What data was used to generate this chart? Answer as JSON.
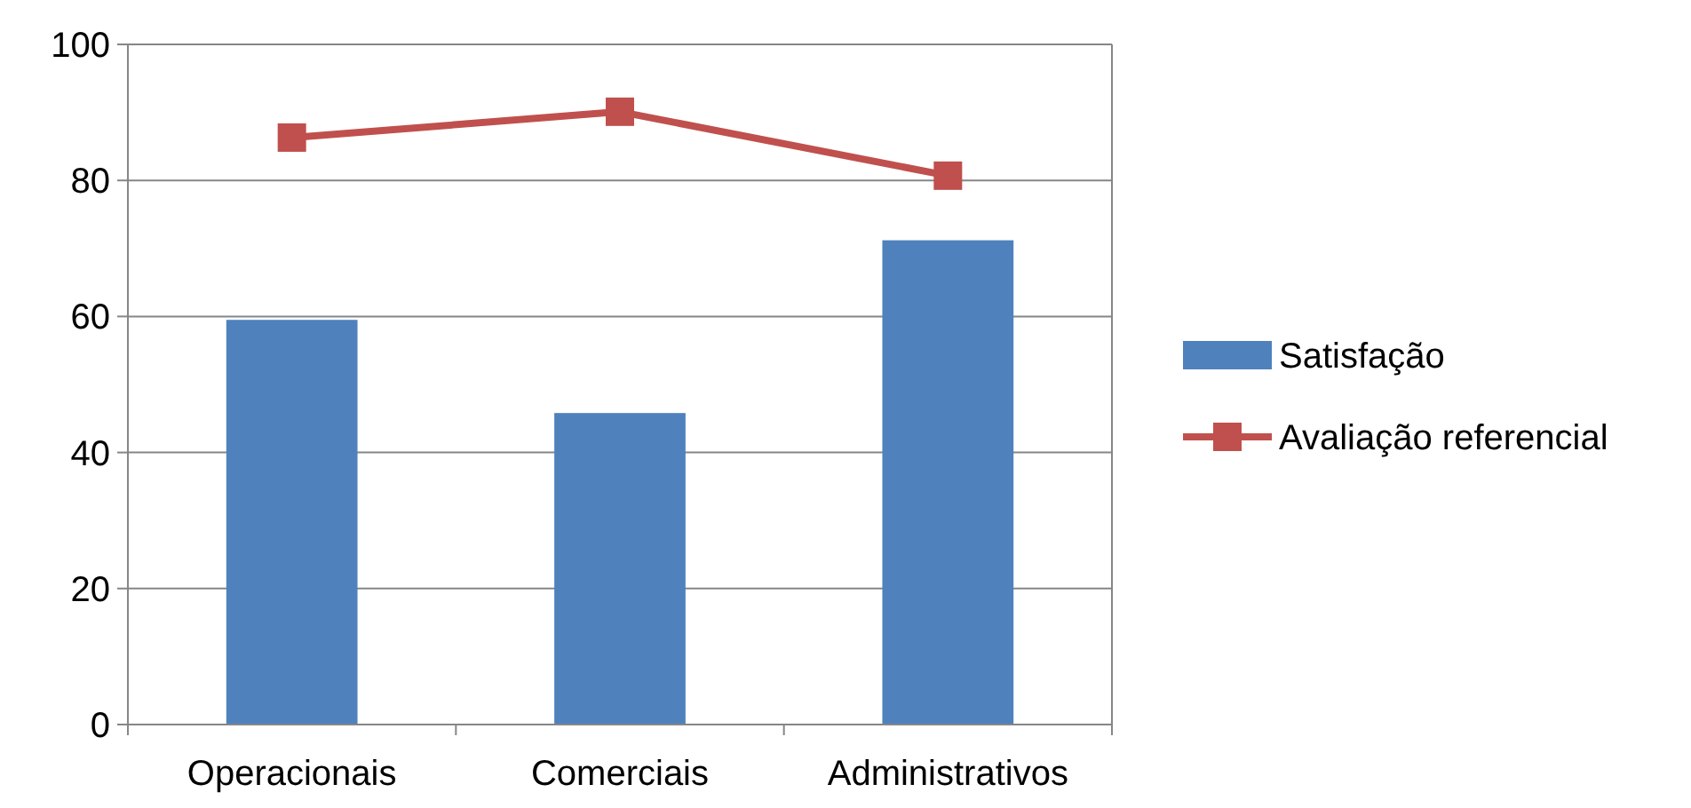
{
  "chart_data": {
    "type": "bar",
    "categories": [
      "Operacionais",
      "Comerciais",
      "Administrativos"
    ],
    "series": [
      {
        "name": "Satisfação",
        "color": "#4f81bd",
        "values": [
          59.5,
          45.8,
          71.2
        ]
      },
      {
        "name": "Avaliação referencial",
        "type": "line",
        "color": "#c0504d",
        "values": [
          86.3,
          90.1,
          80.7
        ],
        "marker": "square"
      }
    ],
    "ylim": [
      0,
      100
    ],
    "yticks": [
      0,
      20,
      40,
      60,
      80,
      100
    ],
    "grid": "y",
    "legend": "right"
  }
}
